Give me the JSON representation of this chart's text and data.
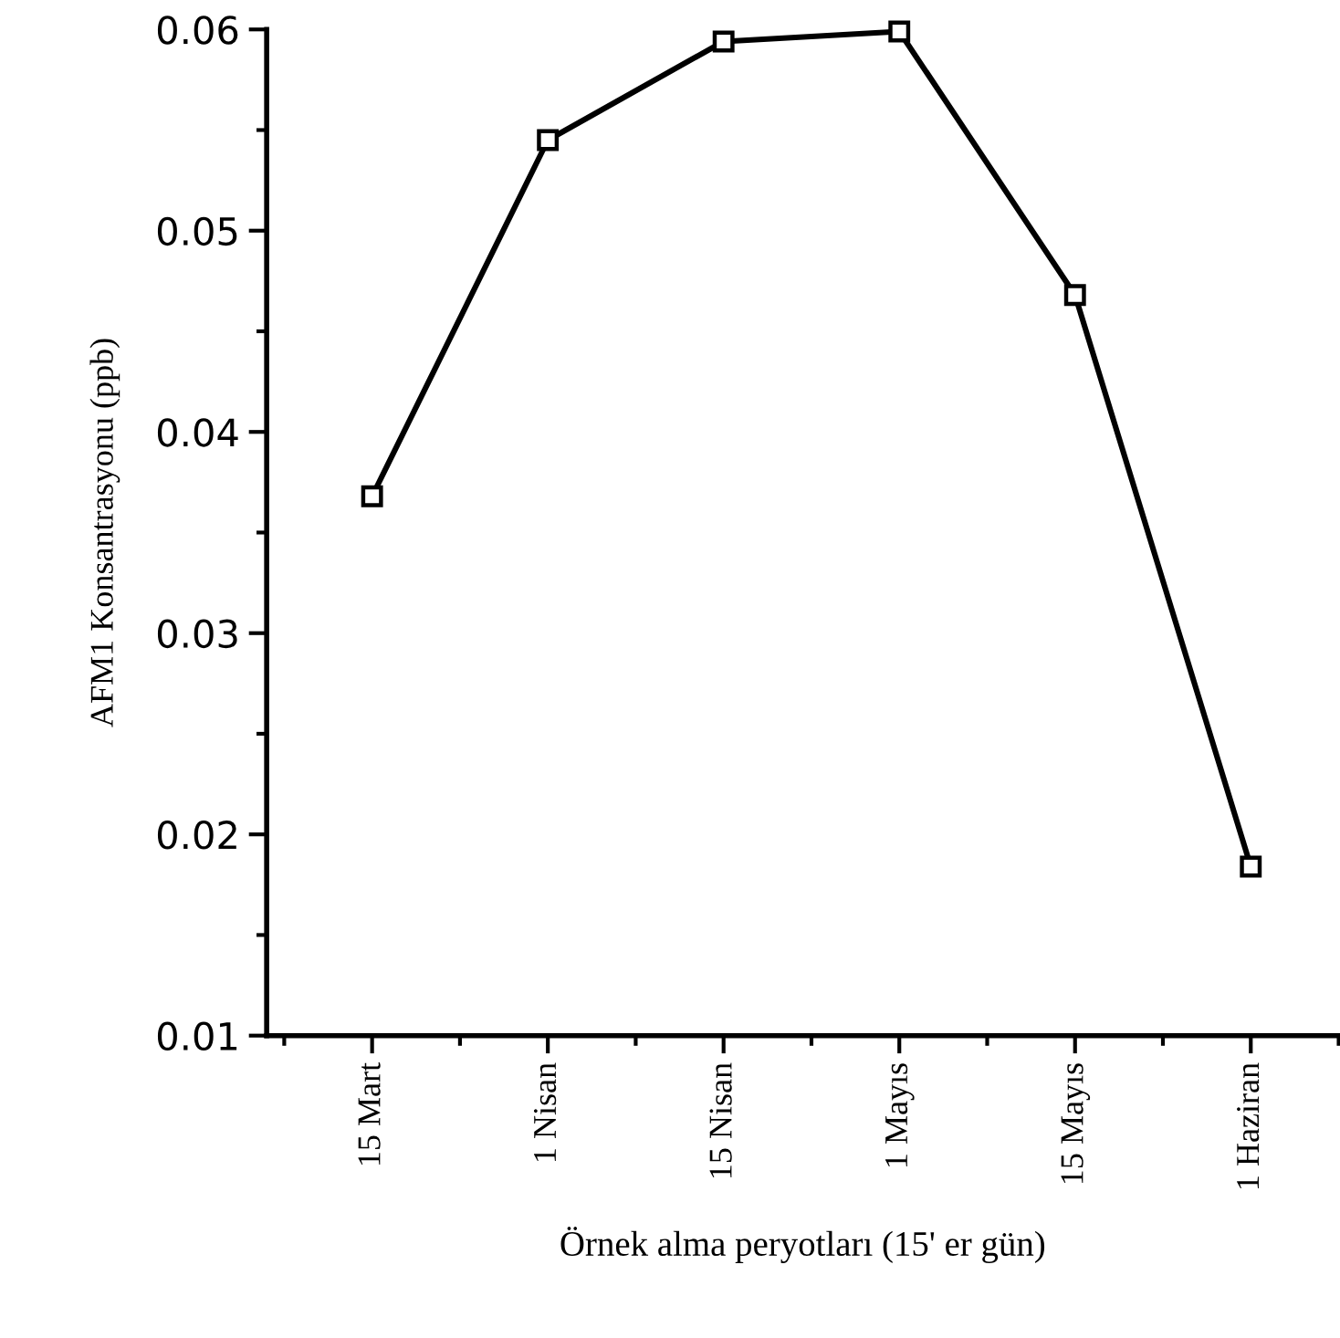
{
  "chart_data": {
    "type": "line",
    "xlabel": "Örnek alma peryotları (15' er gün)",
    "ylabel": "AFM1 Konsantrasyonu (ppb)",
    "categories": [
      "15 Mart",
      "1 Nisan",
      "15 Nisan",
      "1 Mayıs",
      "15 Mayıs",
      "1 Haziran"
    ],
    "series": [
      {
        "color": "#000000",
        "values": [
          0.0368,
          0.0545,
          0.0594,
          0.0599,
          0.0468,
          0.0184
        ]
      }
    ],
    "ylim": [
      0.01,
      0.06
    ],
    "yticks": [
      0.01,
      0.02,
      0.03,
      0.04,
      0.05,
      0.06
    ],
    "grid": false,
    "marker": "square",
    "line_style": "solid"
  }
}
